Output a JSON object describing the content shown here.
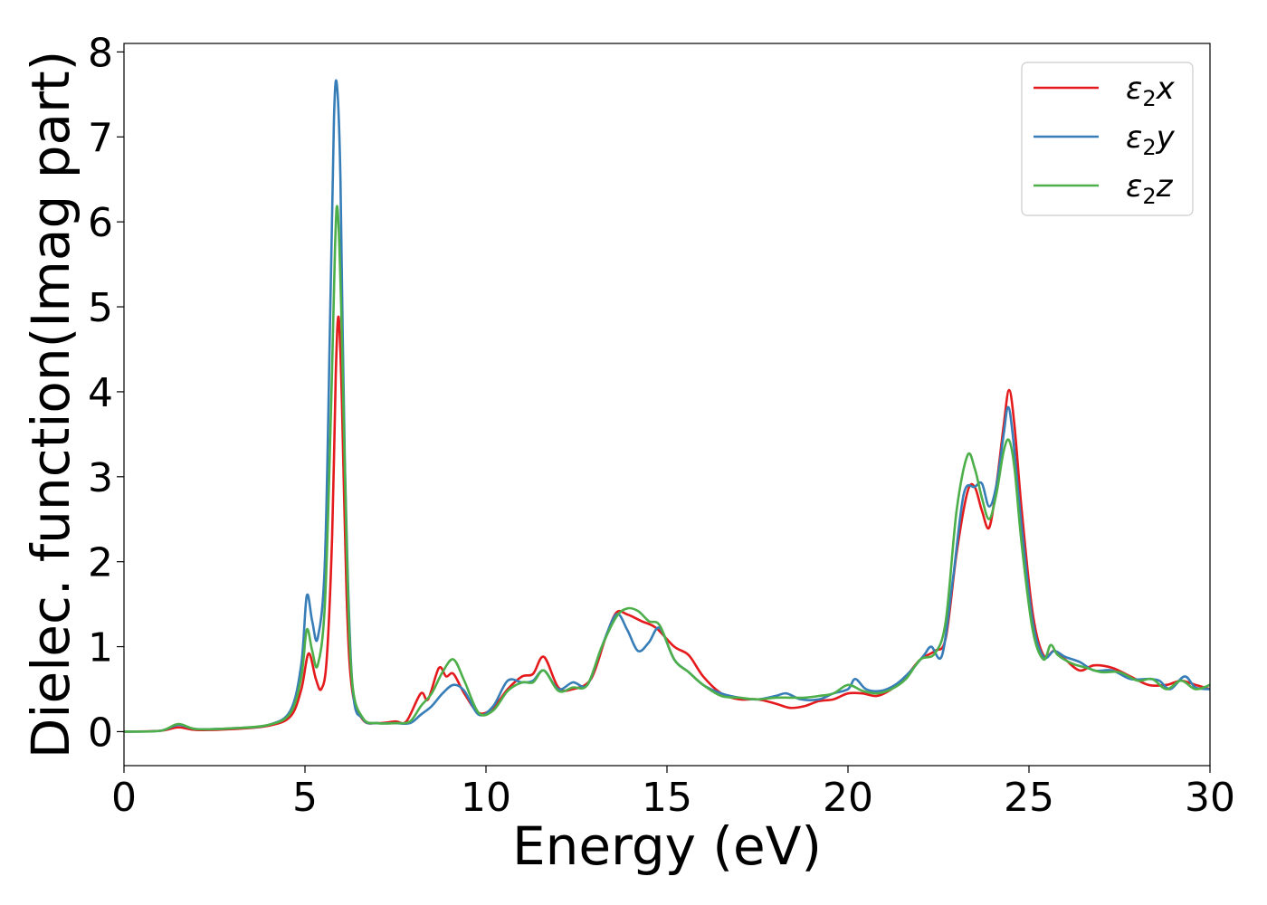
{
  "chart_data": {
    "type": "line",
    "title": "",
    "xlabel": "Energy (eV)",
    "ylabel": "Dielec. function(Imag part)",
    "xlim": [
      0,
      30
    ],
    "ylim": [
      -0.4,
      8.1
    ],
    "xticks": [
      0,
      5,
      10,
      15,
      20,
      25,
      30
    ],
    "yticks": [
      0,
      1,
      2,
      3,
      4,
      5,
      6,
      7,
      8
    ],
    "grid": false,
    "legend_position": "top-right",
    "series": [
      {
        "name": "ε2x",
        "legend_base": "ε",
        "legend_sub": "2",
        "legend_var": "x",
        "color": "#e41a1c",
        "points": [
          [
            0,
            0
          ],
          [
            1,
            0.01
          ],
          [
            1.5,
            0.05
          ],
          [
            2,
            0.02
          ],
          [
            3,
            0.03
          ],
          [
            4,
            0.07
          ],
          [
            4.6,
            0.18
          ],
          [
            4.9,
            0.5
          ],
          [
            5.1,
            0.92
          ],
          [
            5.3,
            0.62
          ],
          [
            5.45,
            0.5
          ],
          [
            5.6,
            0.85
          ],
          [
            5.75,
            2.3
          ],
          [
            5.85,
            4.2
          ],
          [
            5.93,
            4.88
          ],
          [
            6.02,
            3.9
          ],
          [
            6.15,
            1.6
          ],
          [
            6.3,
            0.5
          ],
          [
            6.6,
            0.14
          ],
          [
            7,
            0.1
          ],
          [
            7.5,
            0.12
          ],
          [
            7.8,
            0.12
          ],
          [
            8.2,
            0.45
          ],
          [
            8.4,
            0.38
          ],
          [
            8.7,
            0.75
          ],
          [
            8.9,
            0.65
          ],
          [
            9.1,
            0.68
          ],
          [
            9.4,
            0.45
          ],
          [
            9.8,
            0.22
          ],
          [
            10.2,
            0.28
          ],
          [
            10.6,
            0.5
          ],
          [
            11,
            0.65
          ],
          [
            11.3,
            0.68
          ],
          [
            11.6,
            0.88
          ],
          [
            12,
            0.52
          ],
          [
            12.4,
            0.5
          ],
          [
            12.9,
            0.62
          ],
          [
            13.3,
            1.1
          ],
          [
            13.6,
            1.4
          ],
          [
            13.9,
            1.38
          ],
          [
            14.3,
            1.3
          ],
          [
            14.7,
            1.22
          ],
          [
            15.2,
            1.0
          ],
          [
            15.6,
            0.9
          ],
          [
            16,
            0.65
          ],
          [
            16.5,
            0.45
          ],
          [
            17,
            0.38
          ],
          [
            17.5,
            0.38
          ],
          [
            18,
            0.33
          ],
          [
            18.4,
            0.28
          ],
          [
            18.8,
            0.3
          ],
          [
            19.2,
            0.36
          ],
          [
            19.6,
            0.38
          ],
          [
            20,
            0.45
          ],
          [
            20.4,
            0.45
          ],
          [
            20.8,
            0.42
          ],
          [
            21.2,
            0.5
          ],
          [
            21.6,
            0.65
          ],
          [
            22,
            0.85
          ],
          [
            22.4,
            0.95
          ],
          [
            22.7,
            1.1
          ],
          [
            23,
            2.1
          ],
          [
            23.3,
            2.82
          ],
          [
            23.5,
            2.88
          ],
          [
            23.7,
            2.6
          ],
          [
            23.9,
            2.4
          ],
          [
            24.1,
            2.9
          ],
          [
            24.3,
            3.6
          ],
          [
            24.45,
            4.02
          ],
          [
            24.6,
            3.6
          ],
          [
            24.8,
            2.6
          ],
          [
            25.1,
            1.4
          ],
          [
            25.4,
            0.9
          ],
          [
            25.7,
            0.95
          ],
          [
            26,
            0.85
          ],
          [
            26.4,
            0.72
          ],
          [
            26.8,
            0.78
          ],
          [
            27.3,
            0.75
          ],
          [
            27.8,
            0.65
          ],
          [
            28.3,
            0.55
          ],
          [
            28.8,
            0.55
          ],
          [
            29.2,
            0.6
          ],
          [
            29.6,
            0.55
          ],
          [
            30,
            0.5
          ]
        ]
      },
      {
        "name": "ε2y",
        "legend_base": "ε",
        "legend_sub": "2",
        "legend_var": "y",
        "color": "#377eb8",
        "points": [
          [
            0,
            0
          ],
          [
            1,
            0.01
          ],
          [
            1.5,
            0.08
          ],
          [
            2,
            0.03
          ],
          [
            3,
            0.04
          ],
          [
            4,
            0.08
          ],
          [
            4.6,
            0.25
          ],
          [
            4.9,
            0.8
          ],
          [
            5.05,
            1.6
          ],
          [
            5.2,
            1.3
          ],
          [
            5.35,
            1.1
          ],
          [
            5.55,
            2.0
          ],
          [
            5.7,
            5.0
          ],
          [
            5.8,
            7.2
          ],
          [
            5.88,
            7.62
          ],
          [
            5.98,
            6.5
          ],
          [
            6.1,
            3.2
          ],
          [
            6.3,
            0.6
          ],
          [
            6.6,
            0.15
          ],
          [
            7,
            0.1
          ],
          [
            7.5,
            0.1
          ],
          [
            7.9,
            0.1
          ],
          [
            8.2,
            0.2
          ],
          [
            8.5,
            0.3
          ],
          [
            8.8,
            0.45
          ],
          [
            9.1,
            0.55
          ],
          [
            9.4,
            0.48
          ],
          [
            9.8,
            0.2
          ],
          [
            10.2,
            0.3
          ],
          [
            10.6,
            0.6
          ],
          [
            11,
            0.58
          ],
          [
            11.3,
            0.6
          ],
          [
            11.6,
            0.72
          ],
          [
            12,
            0.5
          ],
          [
            12.4,
            0.58
          ],
          [
            12.8,
            0.55
          ],
          [
            13.2,
            1.0
          ],
          [
            13.6,
            1.38
          ],
          [
            13.9,
            1.2
          ],
          [
            14.2,
            0.95
          ],
          [
            14.5,
            1.05
          ],
          [
            14.8,
            1.22
          ],
          [
            15.2,
            0.85
          ],
          [
            15.6,
            0.7
          ],
          [
            16,
            0.55
          ],
          [
            16.5,
            0.45
          ],
          [
            17,
            0.4
          ],
          [
            17.5,
            0.38
          ],
          [
            18,
            0.42
          ],
          [
            18.3,
            0.45
          ],
          [
            18.7,
            0.38
          ],
          [
            19.2,
            0.38
          ],
          [
            19.6,
            0.45
          ],
          [
            20,
            0.5
          ],
          [
            20.2,
            0.62
          ],
          [
            20.5,
            0.5
          ],
          [
            20.9,
            0.48
          ],
          [
            21.3,
            0.55
          ],
          [
            21.7,
            0.7
          ],
          [
            22.1,
            0.9
          ],
          [
            22.3,
            1.0
          ],
          [
            22.6,
            0.9
          ],
          [
            22.9,
            1.8
          ],
          [
            23.2,
            2.8
          ],
          [
            23.5,
            2.88
          ],
          [
            23.7,
            2.92
          ],
          [
            23.9,
            2.65
          ],
          [
            24.1,
            2.9
          ],
          [
            24.3,
            3.5
          ],
          [
            24.42,
            3.82
          ],
          [
            24.55,
            3.5
          ],
          [
            24.8,
            2.4
          ],
          [
            25.1,
            1.3
          ],
          [
            25.4,
            0.88
          ],
          [
            25.7,
            0.95
          ],
          [
            26,
            0.88
          ],
          [
            26.4,
            0.82
          ],
          [
            26.8,
            0.72
          ],
          [
            27.3,
            0.72
          ],
          [
            27.8,
            0.62
          ],
          [
            28.3,
            0.62
          ],
          [
            28.6,
            0.6
          ],
          [
            28.9,
            0.5
          ],
          [
            29.3,
            0.65
          ],
          [
            29.6,
            0.52
          ],
          [
            30,
            0.5
          ]
        ]
      },
      {
        "name": "ε2z",
        "legend_base": "ε",
        "legend_sub": "2",
        "legend_var": "z",
        "color": "#4daf4a",
        "points": [
          [
            0,
            0
          ],
          [
            1,
            0.01
          ],
          [
            1.5,
            0.09
          ],
          [
            2,
            0.03
          ],
          [
            3,
            0.04
          ],
          [
            4,
            0.08
          ],
          [
            4.6,
            0.22
          ],
          [
            4.9,
            0.65
          ],
          [
            5.05,
            1.2
          ],
          [
            5.2,
            0.95
          ],
          [
            5.35,
            0.78
          ],
          [
            5.55,
            1.5
          ],
          [
            5.72,
            3.8
          ],
          [
            5.83,
            5.7
          ],
          [
            5.9,
            6.15
          ],
          [
            6.0,
            5.0
          ],
          [
            6.15,
            2.2
          ],
          [
            6.3,
            0.6
          ],
          [
            6.6,
            0.16
          ],
          [
            7,
            0.1
          ],
          [
            7.5,
            0.1
          ],
          [
            7.9,
            0.12
          ],
          [
            8.2,
            0.3
          ],
          [
            8.5,
            0.45
          ],
          [
            8.8,
            0.7
          ],
          [
            9.1,
            0.85
          ],
          [
            9.4,
            0.6
          ],
          [
            9.8,
            0.22
          ],
          [
            10.2,
            0.25
          ],
          [
            10.6,
            0.48
          ],
          [
            11,
            0.58
          ],
          [
            11.3,
            0.58
          ],
          [
            11.6,
            0.72
          ],
          [
            12,
            0.48
          ],
          [
            12.4,
            0.52
          ],
          [
            12.8,
            0.55
          ],
          [
            13.2,
            1.0
          ],
          [
            13.6,
            1.35
          ],
          [
            13.9,
            1.45
          ],
          [
            14.2,
            1.42
          ],
          [
            14.5,
            1.3
          ],
          [
            14.8,
            1.25
          ],
          [
            15.2,
            0.85
          ],
          [
            15.6,
            0.7
          ],
          [
            16,
            0.55
          ],
          [
            16.5,
            0.42
          ],
          [
            17,
            0.4
          ],
          [
            17.5,
            0.38
          ],
          [
            18,
            0.4
          ],
          [
            18.4,
            0.4
          ],
          [
            18.8,
            0.4
          ],
          [
            19.2,
            0.42
          ],
          [
            19.6,
            0.45
          ],
          [
            20,
            0.55
          ],
          [
            20.4,
            0.48
          ],
          [
            20.8,
            0.45
          ],
          [
            21.2,
            0.5
          ],
          [
            21.6,
            0.62
          ],
          [
            22,
            0.85
          ],
          [
            22.4,
            0.92
          ],
          [
            22.7,
            1.3
          ],
          [
            23,
            2.6
          ],
          [
            23.3,
            3.25
          ],
          [
            23.5,
            3.1
          ],
          [
            23.7,
            2.75
          ],
          [
            23.9,
            2.5
          ],
          [
            24.1,
            2.8
          ],
          [
            24.3,
            3.3
          ],
          [
            24.45,
            3.43
          ],
          [
            24.6,
            3.1
          ],
          [
            24.8,
            2.2
          ],
          [
            25.1,
            1.2
          ],
          [
            25.4,
            0.85
          ],
          [
            25.6,
            1.02
          ],
          [
            25.8,
            0.9
          ],
          [
            26.2,
            0.8
          ],
          [
            26.6,
            0.75
          ],
          [
            27,
            0.7
          ],
          [
            27.5,
            0.7
          ],
          [
            28,
            0.6
          ],
          [
            28.4,
            0.62
          ],
          [
            28.8,
            0.5
          ],
          [
            29.2,
            0.6
          ],
          [
            29.6,
            0.5
          ],
          [
            30,
            0.55
          ]
        ]
      }
    ]
  }
}
